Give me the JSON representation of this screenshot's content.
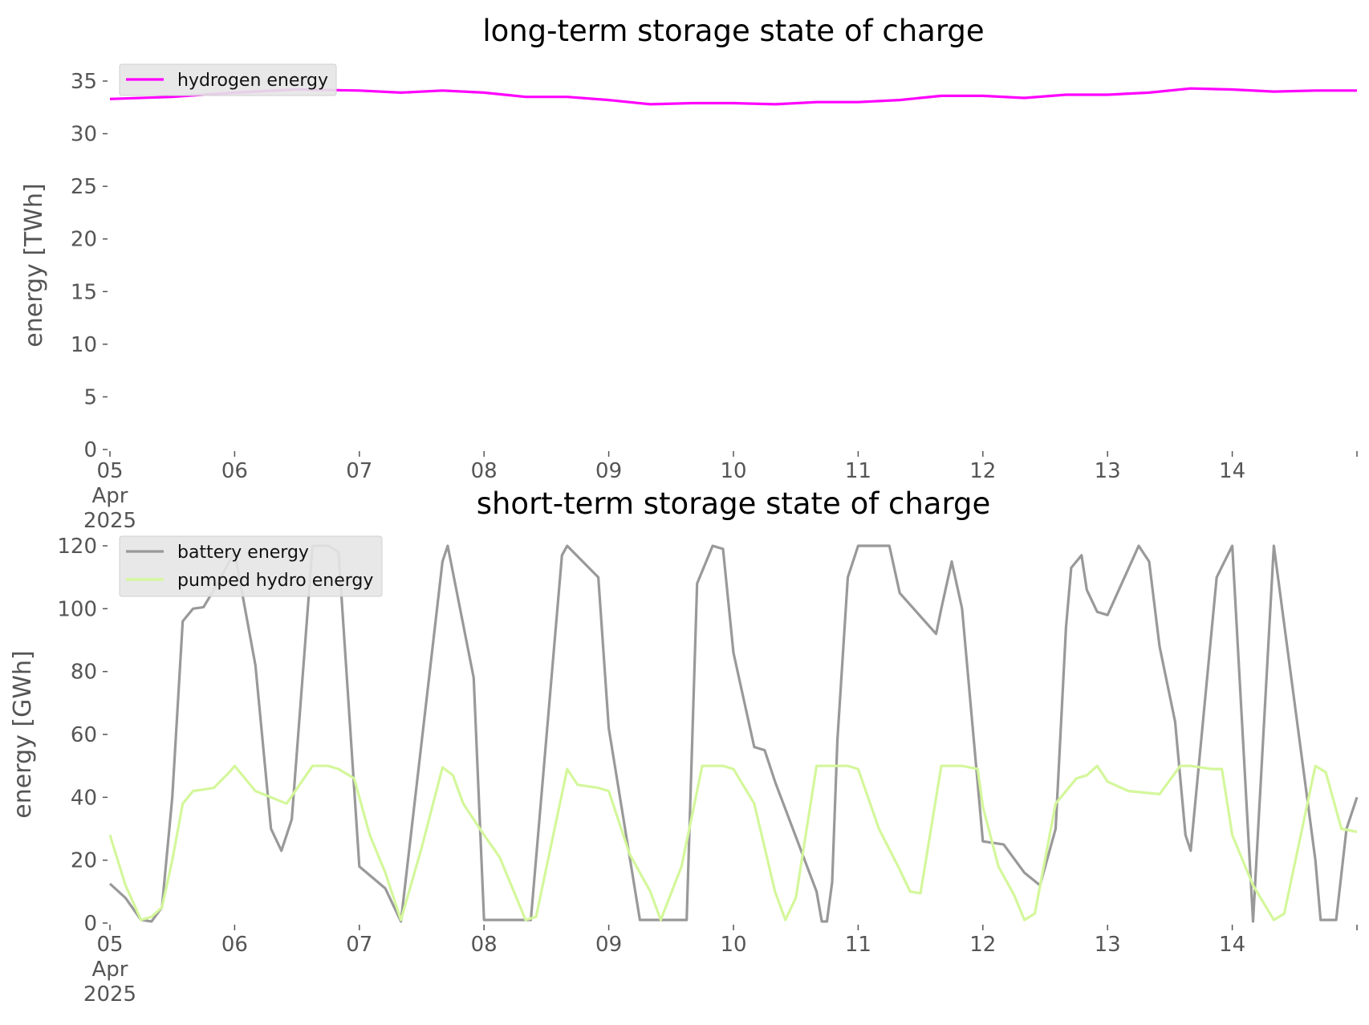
{
  "chart_data": [
    {
      "type": "line",
      "title": "long-term storage state of charge",
      "xlabel": "",
      "ylabel": "energy [TWh]",
      "ylim": [
        0,
        35
      ],
      "yticks": [
        0,
        5,
        10,
        15,
        20,
        25,
        30,
        35
      ],
      "xlim": [
        "2025-04-05",
        "2025-04-15"
      ],
      "xticks": [
        "2025-04-05",
        "2025-04-06",
        "2025-04-07",
        "2025-04-08",
        "2025-04-09",
        "2025-04-10",
        "2025-04-11",
        "2025-04-12",
        "2025-04-13",
        "2025-04-14"
      ],
      "xtick_labels": [
        "05\nApr\n2025",
        "06",
        "07",
        "08",
        "09",
        "10",
        "11",
        "12",
        "13",
        "14"
      ],
      "grid": false,
      "legend": "top-left",
      "series": [
        {
          "name": "hydrogen energy",
          "color": "#ff00ff",
          "x": [
            "2025-04-05T00:00",
            "2025-04-05T12:00",
            "2025-04-06T00:00",
            "2025-04-06T12:00",
            "2025-04-07T00:00",
            "2025-04-07T08:00",
            "2025-04-07T16:00",
            "2025-04-08T00:00",
            "2025-04-08T08:00",
            "2025-04-08T16:00",
            "2025-04-09T00:00",
            "2025-04-09T08:00",
            "2025-04-09T16:00",
            "2025-04-10T00:00",
            "2025-04-10T08:00",
            "2025-04-10T16:00",
            "2025-04-11T00:00",
            "2025-04-11T08:00",
            "2025-04-11T16:00",
            "2025-04-12T00:00",
            "2025-04-12T08:00",
            "2025-04-12T16:00",
            "2025-04-13T00:00",
            "2025-04-13T08:00",
            "2025-04-13T16:00",
            "2025-04-14T00:00",
            "2025-04-14T08:00",
            "2025-04-14T16:00",
            "2025-04-15T00:00"
          ],
          "values": [
            33.3,
            33.5,
            33.9,
            34.2,
            34.1,
            33.9,
            34.1,
            33.9,
            33.5,
            33.5,
            33.2,
            32.8,
            32.9,
            32.9,
            32.8,
            33.0,
            33.0,
            33.2,
            33.6,
            33.6,
            33.4,
            33.7,
            33.7,
            33.9,
            34.3,
            34.2,
            34.0,
            34.1,
            34.1
          ]
        }
      ]
    },
    {
      "type": "line",
      "title": "short-term storage state of charge",
      "xlabel": "",
      "ylabel": "energy [GWh]",
      "ylim": [
        0,
        120
      ],
      "yticks": [
        0,
        20,
        40,
        60,
        80,
        100,
        120
      ],
      "xlim": [
        "2025-04-05",
        "2025-04-15"
      ],
      "xticks": [
        "2025-04-05",
        "2025-04-06",
        "2025-04-07",
        "2025-04-08",
        "2025-04-09",
        "2025-04-10",
        "2025-04-11",
        "2025-04-12",
        "2025-04-13",
        "2025-04-14"
      ],
      "xtick_labels": [
        "05\nApr\n2025",
        "06",
        "07",
        "08",
        "09",
        "10",
        "11",
        "12",
        "13",
        "14"
      ],
      "grid": false,
      "legend": "top-left",
      "series": [
        {
          "name": "battery energy",
          "color": "#999999",
          "x": [
            "2025-04-05T00:00",
            "2025-04-05T03:00",
            "2025-04-05T06:00",
            "2025-04-05T08:00",
            "2025-04-05T10:00",
            "2025-04-05T12:00",
            "2025-04-05T14:00",
            "2025-04-05T16:00",
            "2025-04-05T18:00",
            "2025-04-05T20:00",
            "2025-04-06T00:00",
            "2025-04-06T04:00",
            "2025-04-06T07:00",
            "2025-04-06T09:00",
            "2025-04-06T11:00",
            "2025-04-06T15:00",
            "2025-04-06T18:00",
            "2025-04-06T20:00",
            "2025-04-07T00:00",
            "2025-04-07T05:00",
            "2025-04-07T08:00",
            "2025-04-07T16:00",
            "2025-04-07T17:00",
            "2025-04-07T22:00",
            "2025-04-08T00:00",
            "2025-04-08T03:00",
            "2025-04-08T09:00",
            "2025-04-08T15:00",
            "2025-04-08T16:00",
            "2025-04-08T22:00",
            "2025-04-09T00:00",
            "2025-04-09T06:00",
            "2025-04-09T09:00",
            "2025-04-09T15:00",
            "2025-04-09T17:00",
            "2025-04-09T20:00",
            "2025-04-09T22:00",
            "2025-04-10T00:00",
            "2025-04-10T04:00",
            "2025-04-10T06:00",
            "2025-04-10T08:00",
            "2025-04-10T16:00",
            "2025-04-10T17:00",
            "2025-04-10T18:00",
            "2025-04-10T19:00",
            "2025-04-10T20:00",
            "2025-04-10T22:00",
            "2025-04-11T00:00",
            "2025-04-11T06:00",
            "2025-04-11T08:00",
            "2025-04-11T15:00",
            "2025-04-11T16:00",
            "2025-04-11T18:00",
            "2025-04-11T20:00",
            "2025-04-12T00:00",
            "2025-04-12T04:00",
            "2025-04-12T08:00",
            "2025-04-12T11:00",
            "2025-04-12T14:00",
            "2025-04-12T16:00",
            "2025-04-12T17:00",
            "2025-04-12T19:00",
            "2025-04-12T20:00",
            "2025-04-12T22:00",
            "2025-04-13T00:00",
            "2025-04-13T06:00",
            "2025-04-13T08:00",
            "2025-04-13T10:00",
            "2025-04-13T13:00",
            "2025-04-13T15:00",
            "2025-04-13T16:00",
            "2025-04-13T21:00",
            "2025-04-14T00:00",
            "2025-04-14T04:00",
            "2025-04-14T08:00",
            "2025-04-14T16:00",
            "2025-04-14T17:00",
            "2025-04-14T20:00",
            "2025-04-14T22:00",
            "2025-04-15T00:00"
          ],
          "values": [
            12.5,
            8,
            1,
            0.5,
            5,
            40,
            96,
            100,
            100.5,
            106,
            118,
            82,
            30,
            23,
            33,
            120,
            120,
            118,
            18,
            11,
            0.5,
            115,
            120,
            78,
            1,
            1,
            1,
            117,
            120,
            110,
            62,
            1,
            1,
            1,
            108,
            120,
            119,
            86,
            56,
            55,
            45,
            10,
            0.5,
            0.5,
            13,
            58,
            110,
            120,
            120,
            105,
            92,
            100,
            115,
            100,
            26,
            25,
            16,
            12,
            30,
            94,
            113,
            117,
            106,
            99,
            98,
            120,
            115,
            88,
            64,
            28,
            23,
            110,
            120,
            0.5,
            120,
            20,
            1,
            1,
            30,
            40
          ]
        },
        {
          "name": "pumped hydro energy",
          "color": "#d4f79b",
          "x": [
            "2025-04-05T00:00",
            "2025-04-05T03:00",
            "2025-04-05T06:00",
            "2025-04-05T08:00",
            "2025-04-05T10:00",
            "2025-04-05T12:00",
            "2025-04-05T14:00",
            "2025-04-05T16:00",
            "2025-04-05T20:00",
            "2025-04-05T23:00",
            "2025-04-06T00:00",
            "2025-04-06T04:00",
            "2025-04-06T10:00",
            "2025-04-06T15:00",
            "2025-04-06T18:00",
            "2025-04-06T20:00",
            "2025-04-06T23:00",
            "2025-04-07T02:00",
            "2025-04-07T05:00",
            "2025-04-07T08:00",
            "2025-04-07T12:00",
            "2025-04-07T16:00",
            "2025-04-07T18:00",
            "2025-04-07T20:00",
            "2025-04-08T00:00",
            "2025-04-08T03:00",
            "2025-04-08T08:00",
            "2025-04-08T10:00",
            "2025-04-08T16:00",
            "2025-04-08T18:00",
            "2025-04-08T22:00",
            "2025-04-09T00:00",
            "2025-04-09T04:00",
            "2025-04-09T08:00",
            "2025-04-09T10:00",
            "2025-04-09T14:00",
            "2025-04-09T18:00",
            "2025-04-09T22:00",
            "2025-04-10T00:00",
            "2025-04-10T04:00",
            "2025-04-10T08:00",
            "2025-04-10T10:00",
            "2025-04-10T12:00",
            "2025-04-10T16:00",
            "2025-04-10T22:00",
            "2025-04-11T00:00",
            "2025-04-11T04:00",
            "2025-04-11T08:00",
            "2025-04-11T10:00",
            "2025-04-11T12:00",
            "2025-04-11T16:00",
            "2025-04-11T20:00",
            "2025-04-11T23:00",
            "2025-04-12T00:00",
            "2025-04-12T03:00",
            "2025-04-12T06:00",
            "2025-04-12T08:00",
            "2025-04-12T10:00",
            "2025-04-12T14:00",
            "2025-04-12T18:00",
            "2025-04-12T20:00",
            "2025-04-12T22:00",
            "2025-04-13T00:00",
            "2025-04-13T04:00",
            "2025-04-13T10:00",
            "2025-04-13T14:00",
            "2025-04-13T16:00",
            "2025-04-13T20:00",
            "2025-04-13T22:00",
            "2025-04-14T00:00",
            "2025-04-14T04:00",
            "2025-04-14T08:00",
            "2025-04-14T10:00",
            "2025-04-14T16:00",
            "2025-04-14T18:00",
            "2025-04-14T21:00",
            "2025-04-15T00:00"
          ],
          "values": [
            28,
            12,
            1,
            2,
            5,
            20,
            38,
            42,
            43,
            48,
            50,
            42,
            38,
            50,
            50,
            49,
            46,
            28,
            16,
            1,
            24,
            49.5,
            47,
            38,
            28,
            21,
            1,
            2,
            49,
            44,
            43,
            42,
            22,
            10,
            1,
            18,
            50,
            50,
            49,
            38,
            10,
            1,
            8,
            50,
            50,
            49,
            30,
            17,
            10,
            9.5,
            50,
            50,
            49,
            37,
            18,
            9,
            1,
            3,
            38,
            46,
            47,
            50,
            45,
            42,
            41,
            50,
            50,
            49,
            49,
            28,
            12,
            1,
            3,
            50,
            48,
            30,
            29
          ]
        }
      ]
    }
  ]
}
